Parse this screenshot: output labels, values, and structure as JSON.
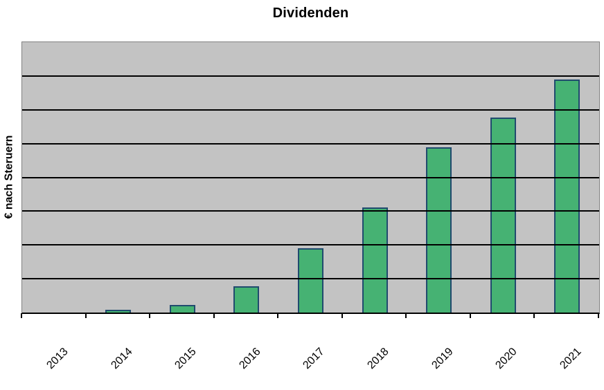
{
  "colors": {
    "page_bg": "#FFFFFF",
    "plot_bg": "#C3C3C3",
    "plot_border": "#828282",
    "gridline": "#000000",
    "axis": "#000000",
    "bar_fill": "#46B273",
    "bar_border": "#204A6E",
    "text": "#000000"
  },
  "chart_data": {
    "type": "bar",
    "title": "Dividenden",
    "xlabel": "",
    "ylabel": "€ nach Steruern",
    "categories": [
      "2013",
      "2014",
      "2015",
      "2016",
      "2017",
      "2018",
      "2019",
      "2020",
      "2021"
    ],
    "values": [
      0,
      0.08,
      0.22,
      0.78,
      1.91,
      3.11,
      4.9,
      5.78,
      6.9
    ],
    "value_note": "y axis shows no numeric tick labels; values estimated in gridline units",
    "ylim": [
      0,
      8
    ],
    "gridline_divisions": 8,
    "grid": "horizontal",
    "legend": "none",
    "x_tick_rotation_deg": 45,
    "series_name": "Dividenden"
  }
}
